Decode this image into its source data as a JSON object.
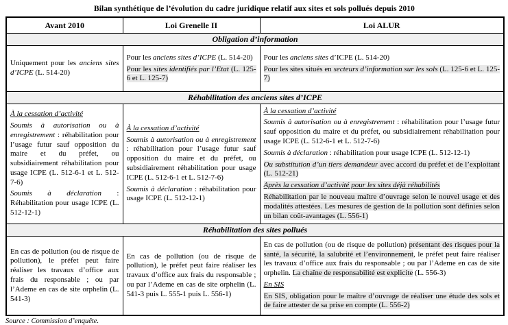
{
  "title": "Bilan synthétique de l’évolution du cadre juridique relatif aux sites et sols pollués depuis 2010",
  "source": "Source : Commission d’enquête.",
  "table": {
    "columns": [
      "Avant 2010",
      "Loi Grenelle II",
      "Loi ALUR"
    ],
    "sections": [
      {
        "key": "obligation-information",
        "heading": "Obligation d’information",
        "cells": [
          [
            [
              {
                "t": "Uniquement pour les "
              },
              {
                "t": "anciens sites d’ICPE",
                "i": true
              },
              {
                "t": " (L. 514-20)"
              }
            ]
          ],
          [
            [
              {
                "t": "Pour les "
              },
              {
                "t": "anciens sites d’ICPE",
                "i": true
              },
              {
                "t": " (L. 514-20)"
              }
            ],
            [
              {
                "t": "Pour les ",
                "h": true
              },
              {
                "t": "sites identifiés par l’Etat",
                "i": true,
                "h": true
              },
              {
                "t": " (L. 125-6 et L. 125-7)",
                "h": true
              }
            ]
          ],
          [
            [
              {
                "t": "Pour les "
              },
              {
                "t": "anciens sites",
                "i": true
              },
              {
                "t": " d’ICPE (L. 514-20)"
              }
            ],
            [
              {
                "t": "Pour les sites situés en ",
                "h": true
              },
              {
                "t": "secteurs d’information sur les sols",
                "i": true,
                "h": true
              },
              {
                "t": " (L. 125-6 et L. 125-7)",
                "h": true
              }
            ]
          ]
        ]
      },
      {
        "key": "rehabilitation-anciens-sites-icpe",
        "heading": "Réhabilitation des anciens sites d’ICPE",
        "cells": [
          [
            [
              {
                "t": "À la cessation d’activité",
                "i": true,
                "u": true
              }
            ],
            [
              {
                "t": "Soumis à autorisation ou à enregistrement",
                "i": true
              },
              {
                "t": " : réhabilitation pour l’usage futur sauf opposition du maire et du préfet, ou subsidiairement réhabilitation pour usage ICPE (L. 512-6-1 et L. 512-7-6)"
              }
            ],
            [
              {
                "t": "Soumis à déclaration",
                "i": true
              },
              {
                "t": " : Réhabilitation pour usage ICPE (L. 512-12-1)"
              }
            ]
          ],
          [
            [
              {
                "t": "À la cessation d’activité",
                "i": true,
                "u": true
              }
            ],
            [
              {
                "t": "Soumis à autorisation ou à enregistrement",
                "i": true
              },
              {
                "t": " : réhabilitation pour l’usage futur sauf opposition du maire et du préfet, ou subsidiairement réhabilitation pour usage ICPE (L. 512-6-1 et L. 512-7-6)"
              }
            ],
            [
              {
                "t": "Soumis à déclaration",
                "i": true
              },
              {
                "t": " : réhabilitation pour usage ICPE (L. 512-12-1)"
              }
            ]
          ],
          [
            [
              {
                "t": "À la cessation d’activité",
                "i": true,
                "u": true
              }
            ],
            [
              {
                "t": "Soumis à autorisation ou à enregistrement",
                "i": true
              },
              {
                "t": " : réhabilitation pour l’usage futur sauf opposition du maire et du préfet, ou subsidiairement réhabilitation pour usage ICPE (L. 512-6-1 et L. 512-7-6)"
              }
            ],
            [
              {
                "t": "Soumis à déclaration",
                "i": true
              },
              {
                "t": " : réhabilitation pour usage ICPE (L. 512-12-1)"
              }
            ],
            [
              {
                "t": "Ou substitution d’un tiers demandeur",
                "i": true,
                "h": true
              },
              {
                "t": " avec accord du préfet et de l’exploitant (L. 512-21)",
                "h": true
              }
            ],
            [
              {
                "t": "Après la cessation d’activité pour les sites déjà réhabilités",
                "i": true,
                "u": true,
                "h": true
              }
            ],
            [
              {
                "t": "Réhabilitation par le nouveau maître d’ouvrage selon le nouvel usage et des modalités attestées. Les mesures de gestion de la pollution sont définies selon un bilan coût-avantages (L. 556-1)",
                "h": true
              }
            ]
          ]
        ]
      },
      {
        "key": "rehabilitation-sites-pollues",
        "heading": "Réhabilitation des sites pollués",
        "cells": [
          [
            [
              {
                "t": "En cas de pollution (ou de risque de pollution), le préfet peut faire réaliser les travaux d’office aux frais du responsable ; ou par l’Ademe en cas de site orphelin (L. 541-3)"
              }
            ]
          ],
          [
            [
              {
                "t": "En cas de pollution (ou de risque de pollution), le préfet peut faire réaliser les travaux d’office aux frais du responsable ; ou par l’Ademe en cas de site orphelin (L. 541-3 puis L. 555-1 puis L. 556-1)"
              }
            ]
          ],
          [
            [
              {
                "t": "En cas de pollution (ou de risque de pollution) "
              },
              {
                "t": "présentant des risques pour la santé, la sécurité, la salubrité et l’environnement",
                "h": true
              },
              {
                "t": ", le préfet peut faire réaliser les travaux d’office aux frais du responsable ; ou par l’Ademe en cas de site orphelin. "
              },
              {
                "t": "La chaîne de responsabilité est explicite",
                "h": true
              },
              {
                "t": " (L. 556-3)"
              }
            ],
            [
              {
                "t": "En SIS",
                "i": true,
                "u": true
              }
            ],
            [
              {
                "t": "En SIS, obligation pour le maître d’ouvrage de réaliser une étude des sols et de faire attester de sa prise en compte (L. 556-2)",
                "h": true
              }
            ]
          ]
        ]
      }
    ]
  }
}
